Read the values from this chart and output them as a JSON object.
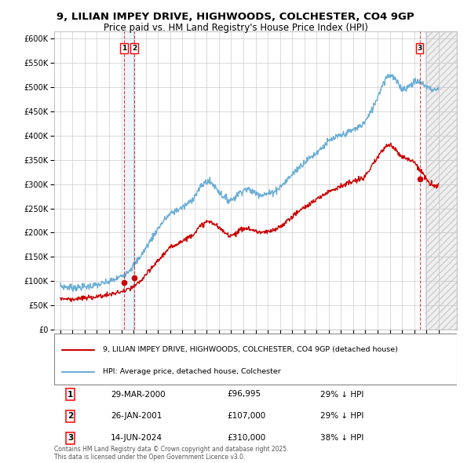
{
  "title": "9, LILIAN IMPEY DRIVE, HIGHWOODS, COLCHESTER, CO4 9GP",
  "subtitle": "Price paid vs. HM Land Registry's House Price Index (HPI)",
  "ytick_values": [
    0,
    50000,
    100000,
    150000,
    200000,
    250000,
    300000,
    350000,
    400000,
    450000,
    500000,
    550000,
    600000
  ],
  "xlim_start": 1994.5,
  "xlim_end": 2027.5,
  "ylim_max": 615000,
  "transactions": [
    {
      "num": 1,
      "date_str": "29-MAR-2000",
      "year": 2000.24,
      "price": 96995
    },
    {
      "num": 2,
      "date_str": "26-JAN-2001",
      "year": 2001.07,
      "price": 107000
    },
    {
      "num": 3,
      "date_str": "14-JUN-2024",
      "year": 2024.45,
      "price": 310000
    }
  ],
  "hpi_color": "#6baed6",
  "price_color": "#cc0000",
  "background_color": "#ffffff",
  "grid_color": "#cccccc",
  "legend_label_price": "9, LILIAN IMPEY DRIVE, HIGHWOODS, COLCHESTER, CO4 9GP (detached house)",
  "legend_label_hpi": "HPI: Average price, detached house, Colchester",
  "footer": "Contains HM Land Registry data © Crown copyright and database right 2025.\nThis data is licensed under the Open Government Licence v3.0.",
  "table_rows": [
    {
      "num": "1",
      "date": "29-MAR-2000",
      "price": "£96,995",
      "hpi": "29% ↓ HPI"
    },
    {
      "num": "2",
      "date": "26-JAN-2001",
      "price": "£107,000",
      "hpi": "29% ↓ HPI"
    },
    {
      "num": "3",
      "date": "14-JUN-2024",
      "price": "£310,000",
      "hpi": "38% ↓ HPI"
    }
  ],
  "hpi_key_years": [
    1995,
    1996,
    1997,
    1998,
    1999,
    2000,
    2001,
    2002,
    2003,
    2004,
    2005,
    2006,
    2007,
    2008,
    2009,
    2010,
    2011,
    2012,
    2013,
    2014,
    2015,
    2016,
    2017,
    2018,
    2019,
    2020,
    2021,
    2022,
    2023,
    2024,
    2025,
    2026
  ],
  "hpi_key_vals": [
    90000,
    87000,
    88000,
    92000,
    99000,
    110000,
    132000,
    168000,
    208000,
    238000,
    252000,
    275000,
    305000,
    285000,
    268000,
    288000,
    282000,
    280000,
    294000,
    320000,
    345000,
    365000,
    388000,
    400000,
    412000,
    430000,
    480000,
    525000,
    498000,
    510000,
    502000,
    497000
  ],
  "price_key_years": [
    1995,
    1996,
    1997,
    1998,
    1999,
    2000,
    2001,
    2002,
    2003,
    2004,
    2005,
    2006,
    2007,
    2008,
    2009,
    2010,
    2011,
    2012,
    2013,
    2014,
    2015,
    2016,
    2017,
    2018,
    2019,
    2020,
    2021,
    2022,
    2023,
    2024,
    2025,
    2026
  ],
  "price_key_vals": [
    65000,
    63000,
    65000,
    68000,
    72000,
    78000,
    88000,
    112000,
    142000,
    168000,
    183000,
    200000,
    222000,
    210000,
    195000,
    208000,
    203000,
    201000,
    212000,
    233000,
    252000,
    268000,
    285000,
    296000,
    305000,
    318000,
    355000,
    380000,
    358000,
    345000,
    310000,
    300000
  ]
}
